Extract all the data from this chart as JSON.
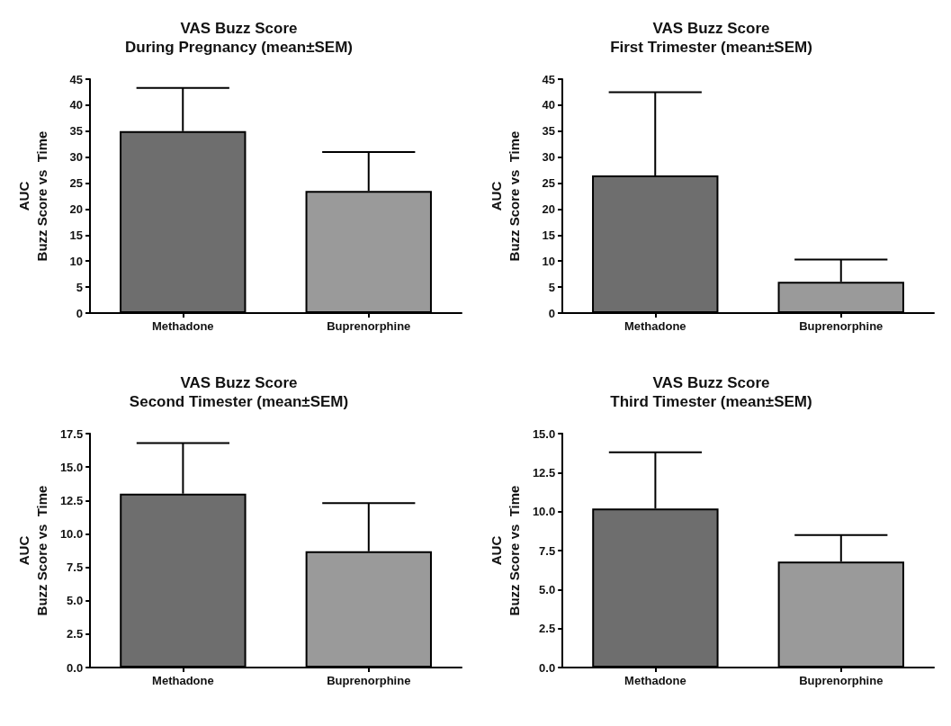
{
  "chart_data": [
    {
      "type": "bar",
      "title": "VAS Buzz Score",
      "subtitle": "During Pregnancy (mean±SEM)",
      "ylabel": "AUC\nBuzz Score vs  Time",
      "categories": [
        "Methadone",
        "Buprenorphine"
      ],
      "values": [
        35,
        23.5
      ],
      "errors": [
        8.3,
        7.5
      ],
      "colors": [
        "#6e6e6e",
        "#9a9a9a"
      ],
      "ylim": [
        0,
        45
      ],
      "yticks": [
        0,
        5,
        10,
        15,
        20,
        25,
        30,
        35,
        40,
        45
      ],
      "grid": false
    },
    {
      "type": "bar",
      "title": "VAS Buzz Score",
      "subtitle": "First Trimester (mean±SEM)",
      "ylabel": "AUC\nBuzz Score vs  Time",
      "categories": [
        "Methadone",
        "Buprenorphine"
      ],
      "values": [
        26.5,
        6
      ],
      "errors": [
        16,
        4.3
      ],
      "colors": [
        "#6e6e6e",
        "#9a9a9a"
      ],
      "ylim": [
        0,
        45
      ],
      "yticks": [
        0,
        5,
        10,
        15,
        20,
        25,
        30,
        35,
        40,
        45
      ],
      "grid": false
    },
    {
      "type": "bar",
      "title": "VAS Buzz Score",
      "subtitle": "Second Timester (mean±SEM)",
      "ylabel": "AUC\nBuzz Score vs  Time",
      "categories": [
        "Methadone",
        "Buprenorphine"
      ],
      "values": [
        13,
        8.7
      ],
      "errors": [
        3.8,
        3.6
      ],
      "colors": [
        "#6e6e6e",
        "#9a9a9a"
      ],
      "ylim": [
        0,
        17.5
      ],
      "yticks": [
        {
          "value": 0,
          "label": "0.0"
        },
        2.5,
        {
          "value": 5,
          "label": "5.0"
        },
        7.5,
        {
          "value": 10,
          "label": "10.0"
        },
        12.5,
        {
          "value": 15,
          "label": "15.0"
        },
        17.5
      ],
      "grid": false
    },
    {
      "type": "bar",
      "title": "VAS Buzz Score",
      "subtitle": "Third Timester (mean±SEM)",
      "ylabel": "AUC\nBuzz Score vs  Time",
      "categories": [
        "Methadone",
        "Buprenorphine"
      ],
      "values": [
        10.2,
        6.8
      ],
      "errors": [
        3.6,
        1.7
      ],
      "colors": [
        "#6e6e6e",
        "#9a9a9a"
      ],
      "ylim": [
        0,
        15
      ],
      "yticks": [
        {
          "value": 0,
          "label": "0.0"
        },
        2.5,
        {
          "value": 5,
          "label": "5.0"
        },
        7.5,
        {
          "value": 10,
          "label": "10.0"
        },
        12.5,
        {
          "value": 15,
          "label": "15.0"
        }
      ],
      "grid": false
    }
  ]
}
